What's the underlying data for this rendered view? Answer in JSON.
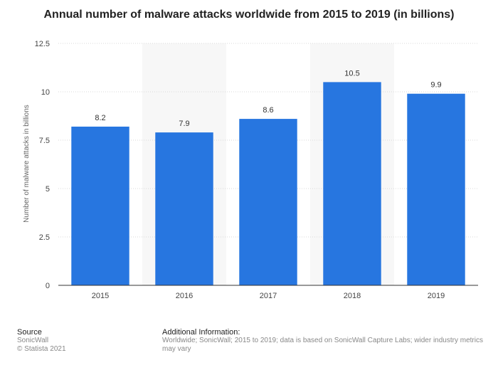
{
  "chart_data": {
    "type": "bar",
    "title": "Annual number of malware attacks worldwide from 2015 to 2019 (in billions)",
    "categories": [
      "2015",
      "2016",
      "2017",
      "2018",
      "2019"
    ],
    "values": [
      8.2,
      7.9,
      8.6,
      10.5,
      9.9
    ],
    "data_labels": [
      "8.2",
      "7.9",
      "8.6",
      "10.5",
      "9.9"
    ],
    "ylabel": "Number of malware attacks in billions",
    "xlabel": "",
    "ylim": [
      0,
      12.5
    ],
    "yticks": [
      0,
      2.5,
      5,
      7.5,
      10,
      12.5
    ],
    "ytick_labels": [
      "0",
      "2.5",
      "5",
      "7.5",
      "10",
      "12.5"
    ],
    "grid": true,
    "legend": "none",
    "bar_color": "#2776e0",
    "band_color": "#f7f7f7"
  },
  "footer": {
    "source_heading": "Source",
    "source_name": "SonicWall",
    "copyright": "© Statista 2021",
    "info_heading": "Additional Information:",
    "info_text": "Worldwide; SonicWall; 2015 to 2019; data is based on SonicWall Capture Labs; wider industry metrics may vary"
  }
}
